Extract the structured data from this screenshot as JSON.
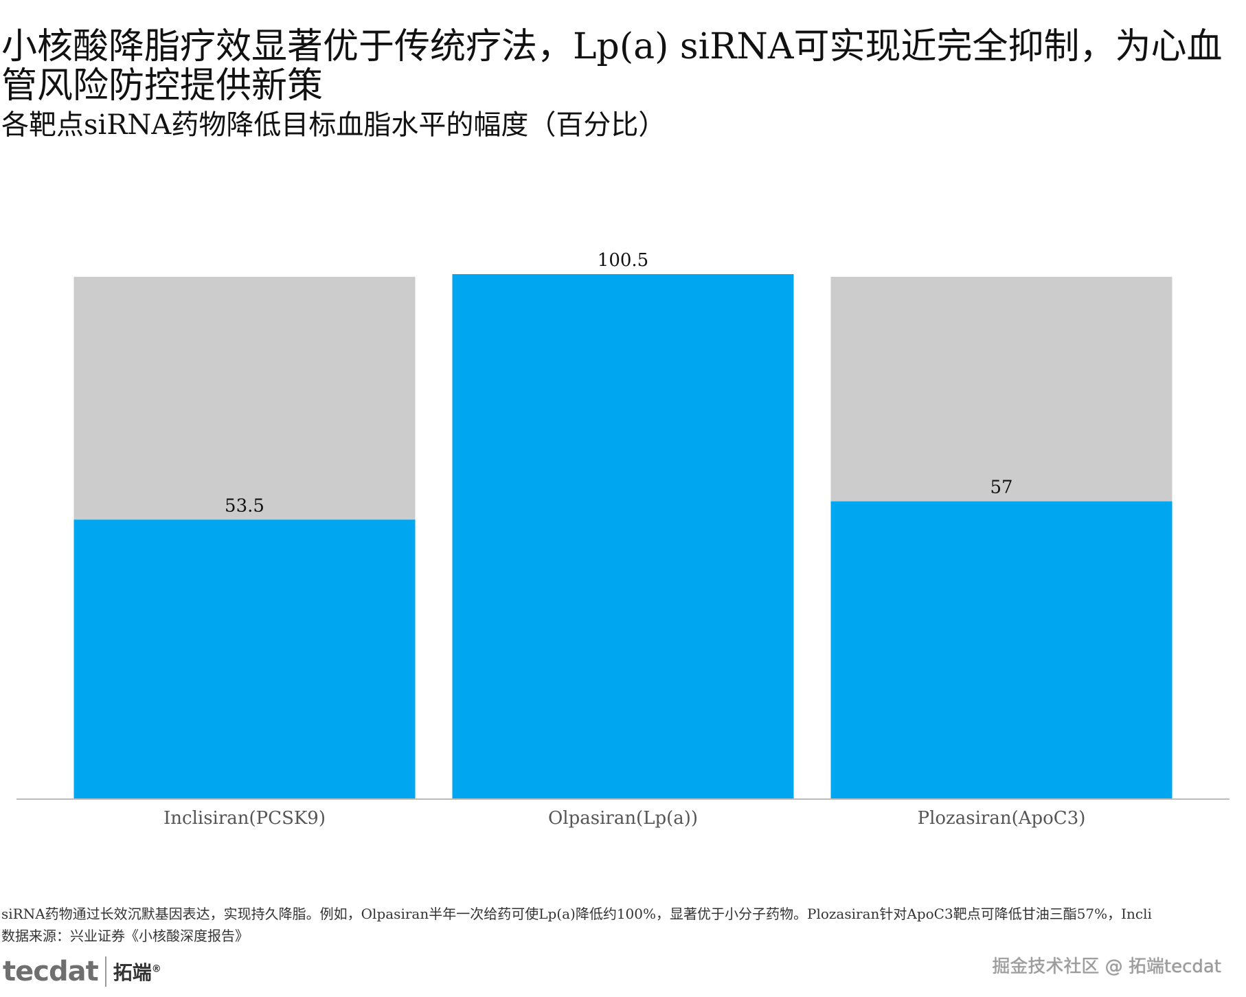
{
  "title": "小核酸降脂疗效显著优于传统疗法，Lp(a) siRNA可实现近完全抑制，为心血管风险防控提供新策",
  "subtitle": "各靶点siRNA药物降低目标血脂水平的幅度（百分比）",
  "footnote": "siRNA药物通过长效沉默基因表达，实现持久降脂。例如，Olpasiran半年一次给药可使Lp(a)降低约100%，显著优于小分子药物。Plozasiran针对ApoC3靶点可降低甘油三酯57%，Incli",
  "source": "数据来源：兴业证券《小核酸深度报告》",
  "logo": {
    "mark": "tecdat",
    "cn": "拓端",
    "reg": "®"
  },
  "watermark": "掘金技术社区 @ 拓端tecdat",
  "colors": {
    "bar": "#00A6F0",
    "background_bar": "#CCCCCC",
    "axis": "#BBBBBB",
    "tick_text": "#555555"
  },
  "chart_data": {
    "type": "bar",
    "categories": [
      "Inclisiran(PCSK9)",
      "Olpasiran(Lp(a))",
      "Plozasiran(ApoC3)"
    ],
    "values": [
      53.5,
      100.5,
      57
    ],
    "data_labels": [
      "53.5",
      "100.5",
      "57"
    ],
    "background_value": 100,
    "ylim": [
      0,
      100.5
    ],
    "grid": false,
    "legend": "none",
    "xlabel": "",
    "ylabel": ""
  }
}
